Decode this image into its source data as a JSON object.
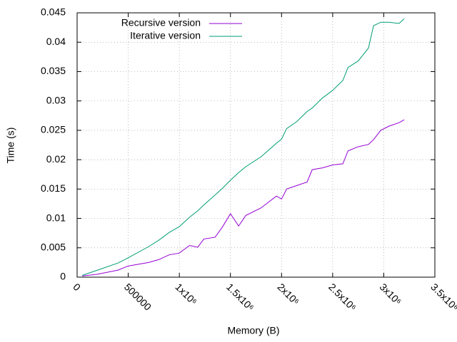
{
  "chart_data": {
    "type": "line",
    "x_label": "Memory (B)",
    "y_label": "Time (s)",
    "x": [
      50000,
      200000,
      400000,
      500000,
      700000,
      800000,
      900000,
      1000000,
      1100000,
      1180000,
      1240000,
      1350000,
      1420000,
      1500000,
      1580000,
      1650000,
      1800000,
      1950000,
      2000000,
      2050000,
      2150000,
      2250000,
      2300000,
      2400000,
      2500000,
      2600000,
      2650000,
      2750000,
      2850000,
      2900000,
      2970000,
      3050000,
      3150000,
      3200000
    ],
    "series": [
      {
        "name": "Recursive version",
        "color": "#9400d3",
        "values": [
          0.0002,
          0.0005,
          0.0012,
          0.0019,
          0.0025,
          0.003,
          0.0038,
          0.0041,
          0.0054,
          0.0051,
          0.0065,
          0.0068,
          0.0085,
          0.0108,
          0.0087,
          0.0105,
          0.0118,
          0.0138,
          0.0133,
          0.015,
          0.0156,
          0.0162,
          0.0183,
          0.0186,
          0.0191,
          0.0193,
          0.0215,
          0.0222,
          0.0226,
          0.0234,
          0.025,
          0.0257,
          0.0263,
          0.0268
        ]
      },
      {
        "name": "Iterative version",
        "color": "#009e73",
        "values": [
          0.0003,
          0.0012,
          0.0024,
          0.0033,
          0.0052,
          0.0063,
          0.0076,
          0.0086,
          0.0102,
          0.0113,
          0.0123,
          0.014,
          0.0151,
          0.0165,
          0.0178,
          0.0188,
          0.0205,
          0.0228,
          0.0235,
          0.0253,
          0.0265,
          0.0282,
          0.0288,
          0.0305,
          0.0318,
          0.0335,
          0.0357,
          0.0368,
          0.039,
          0.0428,
          0.0434,
          0.0434,
          0.0432,
          0.044
        ]
      }
    ],
    "xlim": [
      0,
      3500000
    ],
    "xticks": [
      0,
      500000,
      {
        "value": 1000000,
        "label": "1x10⁶"
      },
      {
        "value": 1500000,
        "label": "1.5x10⁶"
      },
      {
        "value": 2000000,
        "label": "2x10⁶"
      },
      {
        "value": 2500000,
        "label": "2.5x10⁶"
      },
      {
        "value": 3000000,
        "label": "3x10⁶"
      },
      {
        "value": 3500000,
        "label": "3.5x10⁶"
      }
    ],
    "ylim": [
      0,
      0.045
    ],
    "yticks": [
      0,
      0.005,
      0.01,
      0.015,
      0.02,
      0.025,
      0.03,
      0.035,
      0.04,
      0.045
    ],
    "grid": true,
    "legend": "top-left"
  }
}
